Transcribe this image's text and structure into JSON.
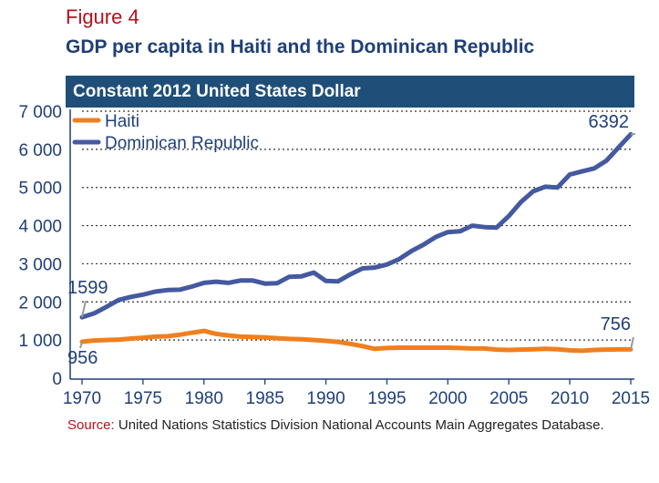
{
  "figure_label": "Figure 4",
  "title": "GDP per capita in Haiti and the Dominican Republic",
  "banner": "Constant 2012 United States Dollar",
  "footer": {
    "source_label": "Source:",
    "source_text": " United Nations Statistics Division National Accounts Main Aggregates Database."
  },
  "colors": {
    "haiti": "#f07f1e",
    "dr": "#44599f",
    "connector": "#9a9a9a",
    "banner": "#1f4e79",
    "accent": "#b5121b"
  },
  "chart_data": {
    "type": "line",
    "title": "GDP per capita in Haiti and the Dominican Republic",
    "subtitle": "Constant 2012 United States Dollar",
    "ylabel": "",
    "xlabel": "",
    "xlim": [
      1970,
      2015
    ],
    "ylim": [
      0,
      7000
    ],
    "y_ticks": [
      0,
      1000,
      2000,
      3000,
      4000,
      5000,
      6000,
      7000
    ],
    "y_tick_labels": [
      "0",
      "1 000",
      "2 000",
      "3 000",
      "4 000",
      "5 000",
      "6 000",
      "7 000"
    ],
    "x_ticks": [
      1970,
      1975,
      1980,
      1985,
      1990,
      1995,
      2000,
      2005,
      2010,
      2015
    ],
    "x_tick_labels": [
      "1970",
      "1975",
      "1980",
      "1985",
      "1990",
      "1995",
      "2000",
      "2005",
      "2010",
      "2015"
    ],
    "grid": "horizontal dotted",
    "legend_position": "top-left",
    "x": [
      1970,
      1971,
      1972,
      1973,
      1974,
      1975,
      1976,
      1977,
      1978,
      1979,
      1980,
      1981,
      1982,
      1983,
      1984,
      1985,
      1986,
      1987,
      1988,
      1989,
      1990,
      1991,
      1992,
      1993,
      1994,
      1995,
      1996,
      1997,
      1998,
      1999,
      2000,
      2001,
      2002,
      2003,
      2004,
      2005,
      2006,
      2007,
      2008,
      2009,
      2010,
      2011,
      2012,
      2013,
      2014,
      2015
    ],
    "series": [
      {
        "name": "Haiti",
        "color": "#f07f1e",
        "values": [
          956,
          990,
          1000,
          1010,
          1040,
          1060,
          1090,
          1100,
          1140,
          1190,
          1240,
          1160,
          1120,
          1090,
          1080,
          1070,
          1050,
          1030,
          1020,
          1000,
          980,
          950,
          900,
          840,
          770,
          790,
          800,
          800,
          800,
          800,
          800,
          790,
          780,
          780,
          750,
          740,
          750,
          760,
          770,
          760,
          730,
          720,
          740,
          750,
          755,
          756
        ]
      },
      {
        "name": "Dominican Republic",
        "color": "#44599f",
        "values": [
          1599,
          1700,
          1870,
          2050,
          2130,
          2190,
          2270,
          2310,
          2320,
          2400,
          2500,
          2530,
          2500,
          2560,
          2560,
          2480,
          2490,
          2660,
          2670,
          2770,
          2550,
          2540,
          2720,
          2880,
          2900,
          2980,
          3120,
          3330,
          3500,
          3700,
          3830,
          3850,
          4000,
          3960,
          3950,
          4250,
          4620,
          4900,
          5020,
          5000,
          5340,
          5420,
          5500,
          5700,
          6050,
          6392
        ]
      }
    ],
    "annotations": [
      {
        "text": "1599",
        "series": "Dominican Republic",
        "x": 1970
      },
      {
        "text": "956",
        "series": "Haiti",
        "x": 1970
      },
      {
        "text": "6392",
        "series": "Dominican Republic",
        "x": 2015
      },
      {
        "text": "756",
        "series": "Haiti",
        "x": 2015
      }
    ]
  }
}
